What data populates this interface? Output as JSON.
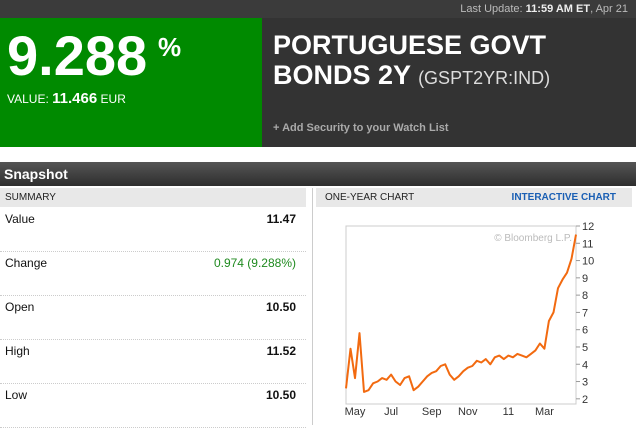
{
  "top_bar": {
    "label": "Last Update:",
    "time": "11:59 AM ET",
    "date": ", Apr 21"
  },
  "quote": {
    "change_percent": "9.288",
    "percent_sign": "%",
    "value_label": "VALUE:",
    "value": "11.466",
    "currency": "EUR"
  },
  "security": {
    "name": "PORTUGUESE GOVT BONDS 2Y",
    "ticker": "(GSPT2YR:IND)",
    "watch_link": "+ Add Security to your Watch List"
  },
  "snapshot": {
    "title": "Snapshot",
    "summary": {
      "header": "SUMMARY",
      "rows": [
        {
          "label": "Value",
          "value": "11.47"
        },
        {
          "label": "Change",
          "value": "0.974 (9.288%)"
        },
        {
          "label": "Open",
          "value": "10.50"
        },
        {
          "label": "High",
          "value": "11.52"
        },
        {
          "label": "Low",
          "value": "10.50"
        }
      ]
    },
    "chart_header": {
      "title": "ONE-YEAR CHART",
      "link": "INTERACTIVE CHART"
    }
  },
  "chart_data": {
    "type": "line",
    "watermark": "© Bloomberg L.P.",
    "color": "#f26a10",
    "categories": [
      null,
      null,
      "May",
      null,
      null,
      null,
      null,
      null,
      null,
      null,
      "Jul",
      null,
      null,
      null,
      null,
      null,
      null,
      null,
      null,
      "Sep",
      null,
      null,
      null,
      null,
      null,
      null,
      null,
      "Nov",
      null,
      null,
      null,
      null,
      null,
      null,
      null,
      null,
      "11",
      null,
      null,
      null,
      null,
      null,
      null,
      null,
      "Mar",
      null,
      null,
      null,
      null,
      null,
      null,
      null
    ],
    "values": [
      2.6,
      4.9,
      3.2,
      5.8,
      2.4,
      2.5,
      2.9,
      3.0,
      3.2,
      3.1,
      3.4,
      3.0,
      2.8,
      3.2,
      3.3,
      2.5,
      2.7,
      3.0,
      3.3,
      3.5,
      3.6,
      3.9,
      4.0,
      3.4,
      3.1,
      3.3,
      3.6,
      3.8,
      3.9,
      4.2,
      4.1,
      4.3,
      4.0,
      4.4,
      4.5,
      4.3,
      4.5,
      4.4,
      4.6,
      4.5,
      4.4,
      4.6,
      4.8,
      5.2,
      4.9,
      6.5,
      7.0,
      8.4,
      8.9,
      9.3,
      10.1,
      11.5
    ],
    "ylim": [
      1.7,
      12
    ],
    "yticks": [
      2,
      3,
      4,
      5,
      6,
      7,
      8,
      9,
      10,
      11,
      12
    ]
  }
}
